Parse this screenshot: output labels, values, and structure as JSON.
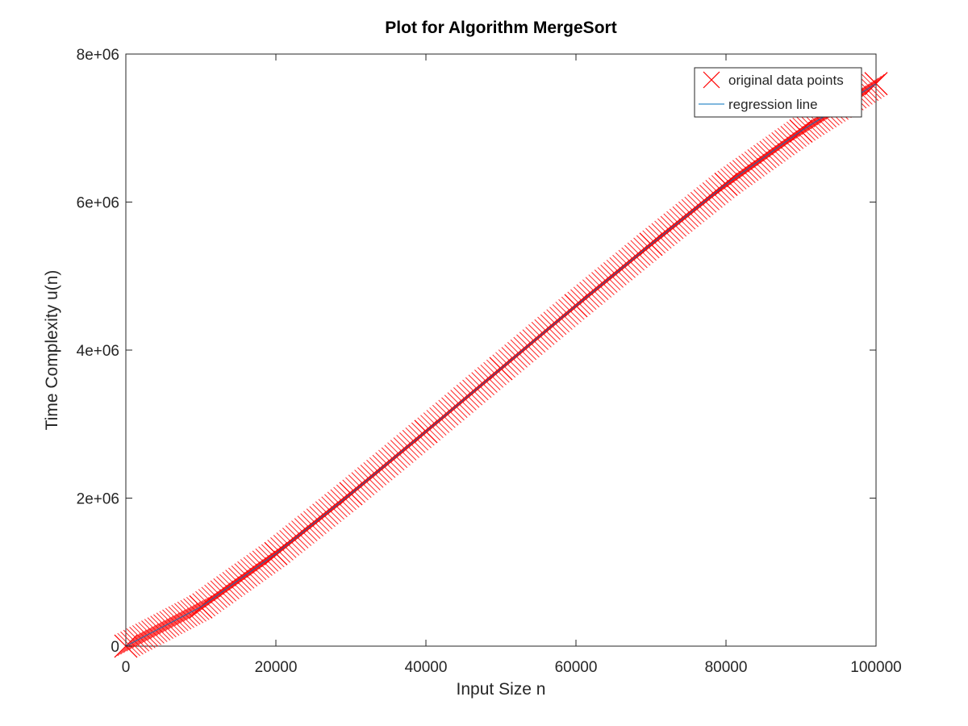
{
  "chart_data": {
    "type": "scatter",
    "title": "Plot for Algorithm MergeSort",
    "xlabel": "Input Size n",
    "ylabel": "Time Complexity u(n)",
    "xlim": [
      0,
      100000
    ],
    "ylim": [
      0,
      8000000
    ],
    "xticks": [
      0,
      20000,
      40000,
      60000,
      80000,
      100000
    ],
    "xtick_labels": [
      "0",
      "20000",
      "40000",
      "60000",
      "80000",
      "100000"
    ],
    "yticks": [
      0,
      2000000,
      4000000,
      6000000,
      8000000
    ],
    "ytick_labels": [
      "0",
      "2e+06",
      "4e+06",
      "6e+06",
      "8e+06"
    ],
    "grid": false,
    "legend_position": "top-right",
    "series": [
      {
        "name": "original data points",
        "style": "markers",
        "marker": "x",
        "color": "#ff0000",
        "x": [
          0,
          10000,
          20000,
          30000,
          40000,
          50000,
          60000,
          70000,
          80000,
          90000,
          100000
        ],
        "y": [
          0,
          530000,
          1250000,
          2060000,
          2900000,
          3750000,
          4600000,
          5430000,
          6240000,
          6960000,
          7600000
        ]
      },
      {
        "name": "regression line",
        "style": "line",
        "color": "#0072bd",
        "x": [
          0,
          10000,
          20000,
          30000,
          40000,
          50000,
          60000,
          70000,
          80000,
          90000,
          100000
        ],
        "y": [
          0,
          530000,
          1250000,
          2060000,
          2900000,
          3750000,
          4600000,
          5430000,
          6240000,
          6960000,
          7600000
        ]
      }
    ]
  }
}
